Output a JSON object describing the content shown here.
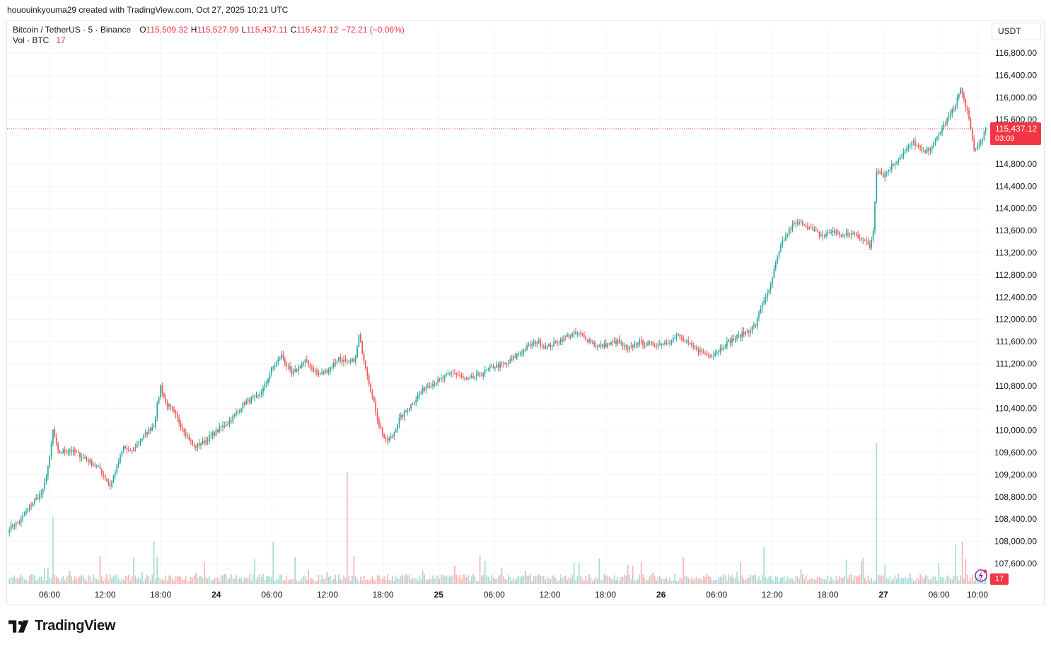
{
  "header": {
    "caption": "hououinkyouma29 created with TradingView.com, Oct 27, 2025 10:21 UTC"
  },
  "legend": {
    "symbol": "Bitcoin / TetherUS · 5 · Binance",
    "o_label": "O",
    "o_value": "115,509.32",
    "h_label": "H",
    "h_value": "115,527.99",
    "l_label": "L",
    "l_value": "115,437.11",
    "c_label": "C",
    "c_value": "115,437.12",
    "change": "−72.21 (−0.06%)",
    "vol_label": "Vol · BTC",
    "vol_value": "17"
  },
  "toolbar": {
    "currency": "USDT"
  },
  "badges": {
    "last_price": "115,437.12",
    "countdown": "03:09",
    "last_volume": "17"
  },
  "brand": {
    "name": "TradingView"
  },
  "colors": {
    "up": "#26a69a",
    "down": "#ef5350",
    "up_volume": "#a8d9d4",
    "down_volume": "#f6b4b2",
    "price_line": "#f23645",
    "grid": "#f0f3fa"
  },
  "chart_data": {
    "type": "candlestick",
    "interval": "5",
    "y_axis_labels": [
      "116,800.00",
      "116,400.00",
      "116,000.00",
      "115,600.00",
      "114,800.00",
      "114,400.00",
      "114,000.00",
      "113,600.00",
      "113,200.00",
      "112,800.00",
      "112,400.00",
      "112,000.00",
      "111,600.00",
      "111,200.00",
      "110,800.00",
      "110,400.00",
      "110,000.00",
      "109,600.00",
      "109,200.00",
      "108,800.00",
      "108,400.00",
      "108,000.00",
      "107,600.00"
    ],
    "x_axis_labels": [
      "06:00",
      "12:00",
      "18:00",
      "24",
      "06:00",
      "12:00",
      "18:00",
      "25",
      "06:00",
      "12:00",
      "18:00",
      "26",
      "06:00",
      "12:00",
      "18:00",
      "27",
      "06:00",
      "10:00"
    ],
    "last_price": 115437.12,
    "price_anchors": [
      [
        0,
        108250
      ],
      [
        6,
        108350
      ],
      [
        14,
        108700
      ],
      [
        20,
        108900
      ],
      [
        24,
        109500
      ],
      [
        26,
        110000
      ],
      [
        29,
        109600
      ],
      [
        36,
        109650
      ],
      [
        45,
        109500
      ],
      [
        54,
        109300
      ],
      [
        60,
        109000
      ],
      [
        68,
        109700
      ],
      [
        72,
        109600
      ],
      [
        80,
        109900
      ],
      [
        86,
        110100
      ],
      [
        90,
        110800
      ],
      [
        93,
        110500
      ],
      [
        97,
        110350
      ],
      [
        104,
        110000
      ],
      [
        110,
        109700
      ],
      [
        116,
        109800
      ],
      [
        124,
        110000
      ],
      [
        132,
        110200
      ],
      [
        140,
        110500
      ],
      [
        148,
        110600
      ],
      [
        152,
        110800
      ],
      [
        156,
        111100
      ],
      [
        162,
        111350
      ],
      [
        168,
        111000
      ],
      [
        176,
        111250
      ],
      [
        184,
        111000
      ],
      [
        190,
        111100
      ],
      [
        196,
        111300
      ],
      [
        202,
        111200
      ],
      [
        206,
        111300
      ],
      [
        208,
        111700
      ],
      [
        212,
        111150
      ],
      [
        216,
        110600
      ],
      [
        220,
        110100
      ],
      [
        224,
        109800
      ],
      [
        228,
        109900
      ],
      [
        232,
        110200
      ],
      [
        240,
        110500
      ],
      [
        248,
        110800
      ],
      [
        256,
        110900
      ],
      [
        264,
        111050
      ],
      [
        272,
        110900
      ],
      [
        280,
        111000
      ],
      [
        288,
        111150
      ],
      [
        296,
        111200
      ],
      [
        302,
        111350
      ],
      [
        308,
        111500
      ],
      [
        314,
        111600
      ],
      [
        320,
        111500
      ],
      [
        326,
        111600
      ],
      [
        332,
        111700
      ],
      [
        338,
        111750
      ],
      [
        344,
        111650
      ],
      [
        350,
        111500
      ],
      [
        356,
        111550
      ],
      [
        362,
        111600
      ],
      [
        368,
        111450
      ],
      [
        374,
        111600
      ],
      [
        380,
        111550
      ],
      [
        386,
        111550
      ],
      [
        392,
        111600
      ],
      [
        398,
        111700
      ],
      [
        404,
        111550
      ],
      [
        410,
        111450
      ],
      [
        416,
        111350
      ],
      [
        420,
        111400
      ],
      [
        424,
        111500
      ],
      [
        428,
        111600
      ],
      [
        434,
        111700
      ],
      [
        440,
        111800
      ],
      [
        444,
        111900
      ],
      [
        448,
        112300
      ],
      [
        452,
        112500
      ],
      [
        456,
        113000
      ],
      [
        460,
        113400
      ],
      [
        466,
        113700
      ],
      [
        472,
        113750
      ],
      [
        478,
        113600
      ],
      [
        484,
        113500
      ],
      [
        490,
        113600
      ],
      [
        496,
        113500
      ],
      [
        502,
        113550
      ],
      [
        508,
        113450
      ],
      [
        512,
        113300
      ],
      [
        514,
        113600
      ],
      [
        516,
        114700
      ],
      [
        520,
        114600
      ],
      [
        526,
        114800
      ],
      [
        532,
        115000
      ],
      [
        538,
        115200
      ],
      [
        544,
        115000
      ],
      [
        550,
        115150
      ],
      [
        556,
        115500
      ],
      [
        562,
        115800
      ],
      [
        566,
        116150
      ],
      [
        570,
        115750
      ],
      [
        574,
        115050
      ],
      [
        578,
        115200
      ],
      [
        581,
        115437
      ]
    ]
  }
}
